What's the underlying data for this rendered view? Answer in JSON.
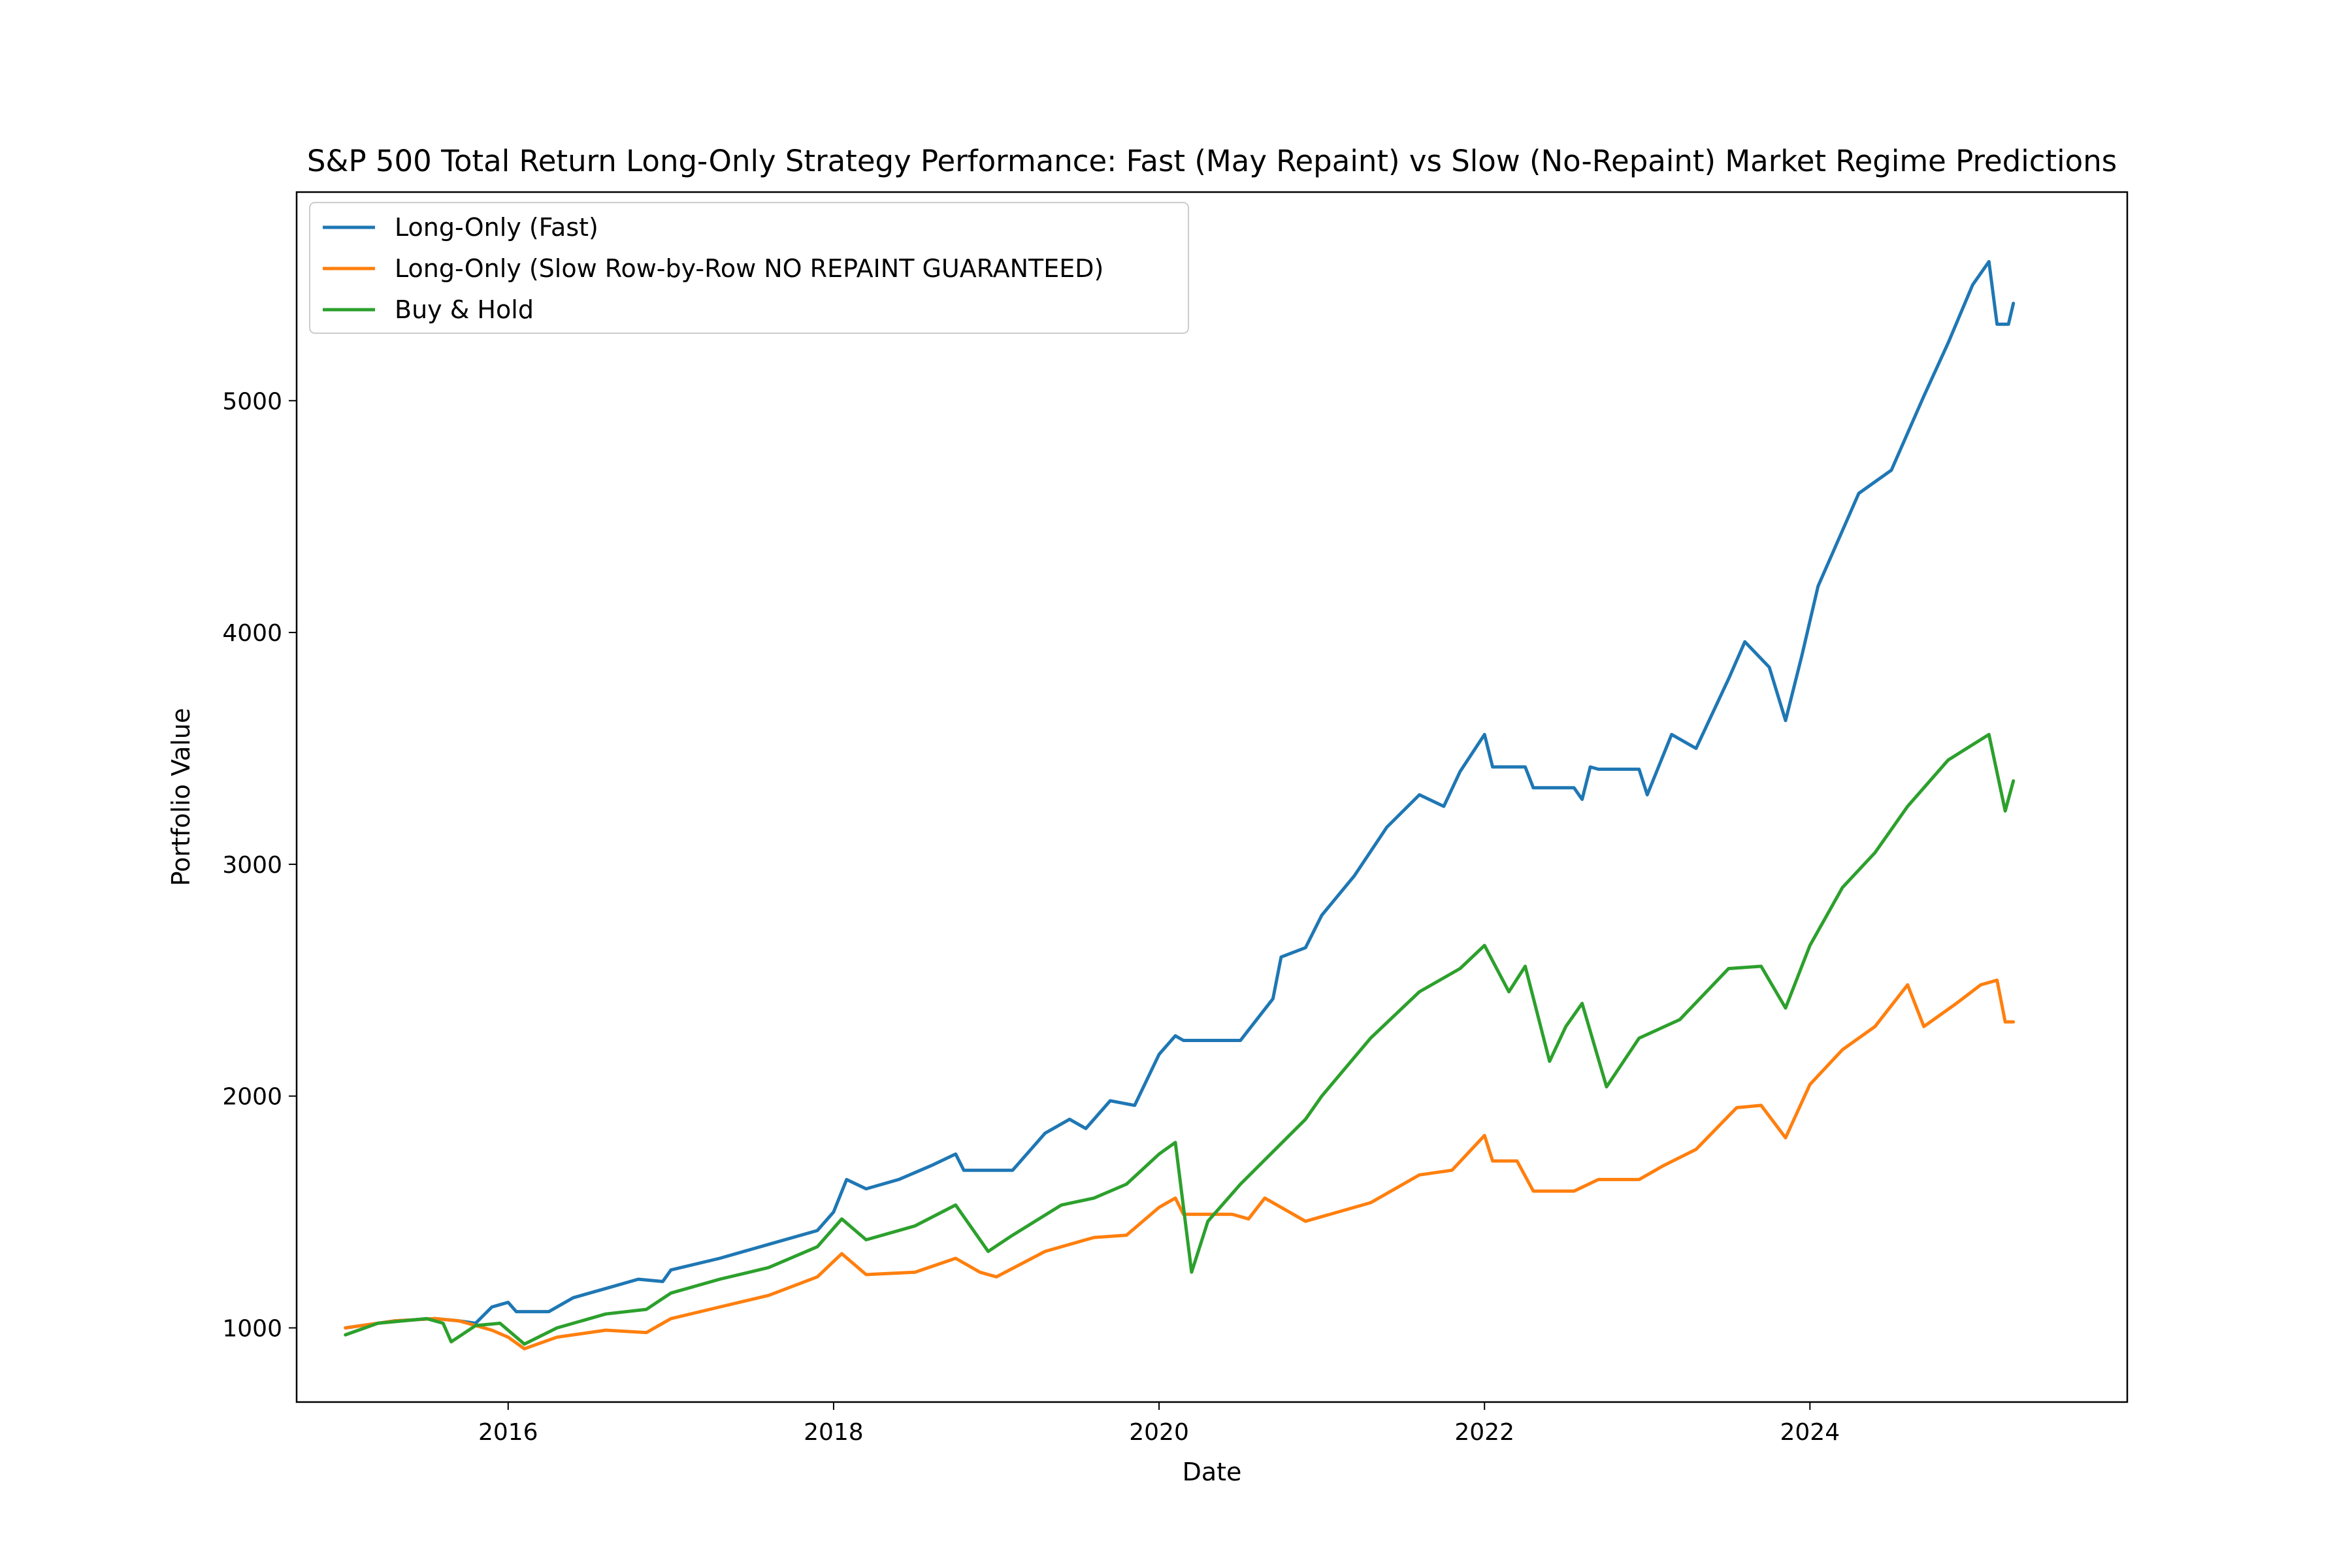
{
  "chart_data": {
    "type": "line",
    "title": "S&P 500 Total Return Long-Only Strategy Performance: Fast (May Repaint) vs Slow (No-Repaint) Market Regime Predictions",
    "xlabel": "Date",
    "ylabel": "Portfolio Value",
    "xlim": [
      2014.7,
      2025.95
    ],
    "ylim": [
      680,
      5900
    ],
    "x_ticks": [
      {
        "value": 2016,
        "label": "2016"
      },
      {
        "value": 2018,
        "label": "2018"
      },
      {
        "value": 2020,
        "label": "2020"
      },
      {
        "value": 2022,
        "label": "2022"
      },
      {
        "value": 2024,
        "label": "2024"
      }
    ],
    "y_ticks": [
      {
        "value": 1000,
        "label": "1000"
      },
      {
        "value": 2000,
        "label": "2000"
      },
      {
        "value": 3000,
        "label": "3000"
      },
      {
        "value": 4000,
        "label": "4000"
      },
      {
        "value": 5000,
        "label": "5000"
      }
    ],
    "grid": false,
    "legend_position": "upper-left",
    "series": [
      {
        "name": "Long-Only (Fast)",
        "color": "#1f77b4",
        "points": [
          [
            2015.0,
            1000
          ],
          [
            2015.3,
            1030
          ],
          [
            2015.55,
            1040
          ],
          [
            2015.7,
            1030
          ],
          [
            2015.8,
            1020
          ],
          [
            2015.9,
            1090
          ],
          [
            2016.0,
            1110
          ],
          [
            2016.05,
            1070
          ],
          [
            2016.25,
            1070
          ],
          [
            2016.4,
            1130
          ],
          [
            2016.6,
            1170
          ],
          [
            2016.8,
            1210
          ],
          [
            2016.95,
            1200
          ],
          [
            2017.0,
            1250
          ],
          [
            2017.3,
            1300
          ],
          [
            2017.6,
            1360
          ],
          [
            2017.9,
            1420
          ],
          [
            2018.0,
            1500
          ],
          [
            2018.08,
            1640
          ],
          [
            2018.2,
            1600
          ],
          [
            2018.4,
            1640
          ],
          [
            2018.6,
            1700
          ],
          [
            2018.75,
            1750
          ],
          [
            2018.8,
            1680
          ],
          [
            2019.0,
            1680
          ],
          [
            2019.1,
            1680
          ],
          [
            2019.3,
            1840
          ],
          [
            2019.45,
            1900
          ],
          [
            2019.55,
            1860
          ],
          [
            2019.7,
            1980
          ],
          [
            2019.85,
            1960
          ],
          [
            2020.0,
            2180
          ],
          [
            2020.1,
            2260
          ],
          [
            2020.15,
            2240
          ],
          [
            2020.5,
            2240
          ],
          [
            2020.7,
            2420
          ],
          [
            2020.75,
            2600
          ],
          [
            2020.9,
            2640
          ],
          [
            2021.0,
            2780
          ],
          [
            2021.2,
            2950
          ],
          [
            2021.4,
            3160
          ],
          [
            2021.6,
            3300
          ],
          [
            2021.75,
            3250
          ],
          [
            2021.85,
            3400
          ],
          [
            2022.0,
            3560
          ],
          [
            2022.05,
            3420
          ],
          [
            2022.25,
            3420
          ],
          [
            2022.3,
            3330
          ],
          [
            2022.55,
            3330
          ],
          [
            2022.6,
            3280
          ],
          [
            2022.65,
            3420
          ],
          [
            2022.7,
            3410
          ],
          [
            2022.95,
            3410
          ],
          [
            2023.0,
            3300
          ],
          [
            2023.15,
            3560
          ],
          [
            2023.3,
            3500
          ],
          [
            2023.5,
            3800
          ],
          [
            2023.6,
            3960
          ],
          [
            2023.75,
            3850
          ],
          [
            2023.85,
            3620
          ],
          [
            2023.95,
            3900
          ],
          [
            2024.05,
            4200
          ],
          [
            2024.3,
            4600
          ],
          [
            2024.5,
            4700
          ],
          [
            2024.7,
            5020
          ],
          [
            2024.85,
            5250
          ],
          [
            2025.0,
            5500
          ],
          [
            2025.1,
            5600
          ],
          [
            2025.15,
            5330
          ],
          [
            2025.22,
            5330
          ],
          [
            2025.25,
            5420
          ]
        ]
      },
      {
        "name": "Long-Only (Slow Row-by-Row NO REPAINT GUARANTEED)",
        "color": "#ff7f0e",
        "points": [
          [
            2015.0,
            1000
          ],
          [
            2015.3,
            1030
          ],
          [
            2015.55,
            1040
          ],
          [
            2015.7,
            1030
          ],
          [
            2015.9,
            990
          ],
          [
            2016.0,
            960
          ],
          [
            2016.1,
            910
          ],
          [
            2016.3,
            960
          ],
          [
            2016.6,
            990
          ],
          [
            2016.85,
            980
          ],
          [
            2017.0,
            1040
          ],
          [
            2017.3,
            1090
          ],
          [
            2017.6,
            1140
          ],
          [
            2017.9,
            1220
          ],
          [
            2018.05,
            1320
          ],
          [
            2018.2,
            1230
          ],
          [
            2018.5,
            1240
          ],
          [
            2018.75,
            1300
          ],
          [
            2018.9,
            1240
          ],
          [
            2019.0,
            1220
          ],
          [
            2019.3,
            1330
          ],
          [
            2019.6,
            1390
          ],
          [
            2019.8,
            1400
          ],
          [
            2020.0,
            1520
          ],
          [
            2020.1,
            1560
          ],
          [
            2020.15,
            1490
          ],
          [
            2020.45,
            1490
          ],
          [
            2020.55,
            1470
          ],
          [
            2020.65,
            1560
          ],
          [
            2020.8,
            1500
          ],
          [
            2020.9,
            1460
          ],
          [
            2021.0,
            1480
          ],
          [
            2021.3,
            1540
          ],
          [
            2021.6,
            1660
          ],
          [
            2021.8,
            1680
          ],
          [
            2022.0,
            1830
          ],
          [
            2022.05,
            1720
          ],
          [
            2022.2,
            1720
          ],
          [
            2022.3,
            1590
          ],
          [
            2022.55,
            1590
          ],
          [
            2022.7,
            1640
          ],
          [
            2022.95,
            1640
          ],
          [
            2023.1,
            1700
          ],
          [
            2023.3,
            1770
          ],
          [
            2023.55,
            1950
          ],
          [
            2023.7,
            1960
          ],
          [
            2023.85,
            1820
          ],
          [
            2024.0,
            2050
          ],
          [
            2024.2,
            2200
          ],
          [
            2024.4,
            2300
          ],
          [
            2024.6,
            2480
          ],
          [
            2024.7,
            2300
          ],
          [
            2024.9,
            2400
          ],
          [
            2025.05,
            2480
          ],
          [
            2025.15,
            2500
          ],
          [
            2025.2,
            2320
          ],
          [
            2025.25,
            2320
          ]
        ]
      },
      {
        "name": "Buy & Hold",
        "color": "#2ca02c",
        "points": [
          [
            2015.0,
            970
          ],
          [
            2015.2,
            1020
          ],
          [
            2015.5,
            1040
          ],
          [
            2015.6,
            1020
          ],
          [
            2015.65,
            940
          ],
          [
            2015.8,
            1010
          ],
          [
            2015.95,
            1020
          ],
          [
            2016.1,
            930
          ],
          [
            2016.3,
            1000
          ],
          [
            2016.6,
            1060
          ],
          [
            2016.85,
            1080
          ],
          [
            2017.0,
            1150
          ],
          [
            2017.3,
            1210
          ],
          [
            2017.6,
            1260
          ],
          [
            2017.9,
            1350
          ],
          [
            2018.05,
            1470
          ],
          [
            2018.2,
            1380
          ],
          [
            2018.5,
            1440
          ],
          [
            2018.75,
            1530
          ],
          [
            2018.95,
            1330
          ],
          [
            2019.1,
            1400
          ],
          [
            2019.4,
            1530
          ],
          [
            2019.6,
            1560
          ],
          [
            2019.8,
            1620
          ],
          [
            2020.0,
            1750
          ],
          [
            2020.1,
            1800
          ],
          [
            2020.2,
            1240
          ],
          [
            2020.3,
            1460
          ],
          [
            2020.5,
            1620
          ],
          [
            2020.7,
            1760
          ],
          [
            2020.9,
            1900
          ],
          [
            2021.0,
            2000
          ],
          [
            2021.3,
            2250
          ],
          [
            2021.6,
            2450
          ],
          [
            2021.85,
            2550
          ],
          [
            2022.0,
            2650
          ],
          [
            2022.15,
            2450
          ],
          [
            2022.25,
            2560
          ],
          [
            2022.4,
            2150
          ],
          [
            2022.5,
            2300
          ],
          [
            2022.6,
            2400
          ],
          [
            2022.75,
            2040
          ],
          [
            2022.95,
            2250
          ],
          [
            2023.2,
            2330
          ],
          [
            2023.5,
            2550
          ],
          [
            2023.7,
            2560
          ],
          [
            2023.85,
            2380
          ],
          [
            2024.0,
            2650
          ],
          [
            2024.2,
            2900
          ],
          [
            2024.4,
            3050
          ],
          [
            2024.6,
            3250
          ],
          [
            2024.85,
            3450
          ],
          [
            2025.1,
            3560
          ],
          [
            2025.2,
            3230
          ],
          [
            2025.25,
            3360
          ]
        ]
      }
    ]
  }
}
